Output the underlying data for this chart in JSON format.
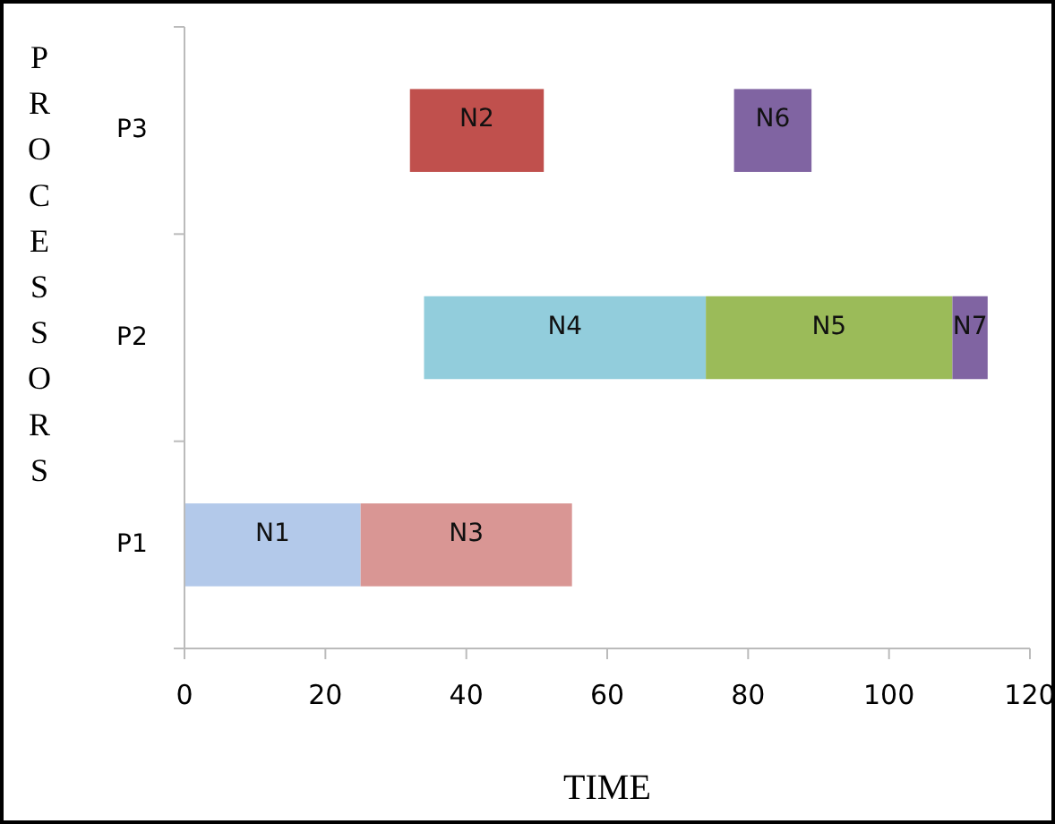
{
  "chart_data": {
    "type": "bar",
    "orientation": "horizontal",
    "xlabel": "TIME",
    "ylabel": "PROCESSORS",
    "categories": [
      "P3",
      "P2",
      "P1"
    ],
    "xlim": [
      0,
      120
    ],
    "xticks": [
      0,
      20,
      40,
      60,
      80,
      100,
      120
    ],
    "series": [
      {
        "name": "N1",
        "color": "#b3c9ea",
        "values": [
          null,
          null,
          25
        ],
        "base": [
          null,
          null,
          0
        ]
      },
      {
        "name": "N2",
        "color": "#c0504d",
        "values": [
          19,
          null,
          null
        ],
        "base": [
          32,
          null,
          null
        ]
      },
      {
        "name": "N3",
        "color": "#d99694",
        "values": [
          null,
          null,
          30
        ],
        "base": [
          null,
          null,
          25
        ]
      },
      {
        "name": "N4",
        "color": "#92cddc",
        "values": [
          null,
          40,
          null
        ],
        "base": [
          null,
          34,
          null
        ]
      },
      {
        "name": "N5",
        "color": "#9bbb59",
        "values": [
          null,
          35,
          null
        ],
        "base": [
          null,
          74,
          null
        ]
      },
      {
        "name": "N6",
        "color": "#8064a2",
        "values": [
          11,
          null,
          null
        ],
        "base": [
          78,
          null,
          null
        ]
      },
      {
        "name": "N7",
        "color": "#8064a2",
        "values": [
          null,
          5,
          null
        ],
        "base": [
          null,
          109,
          null
        ]
      }
    ]
  }
}
